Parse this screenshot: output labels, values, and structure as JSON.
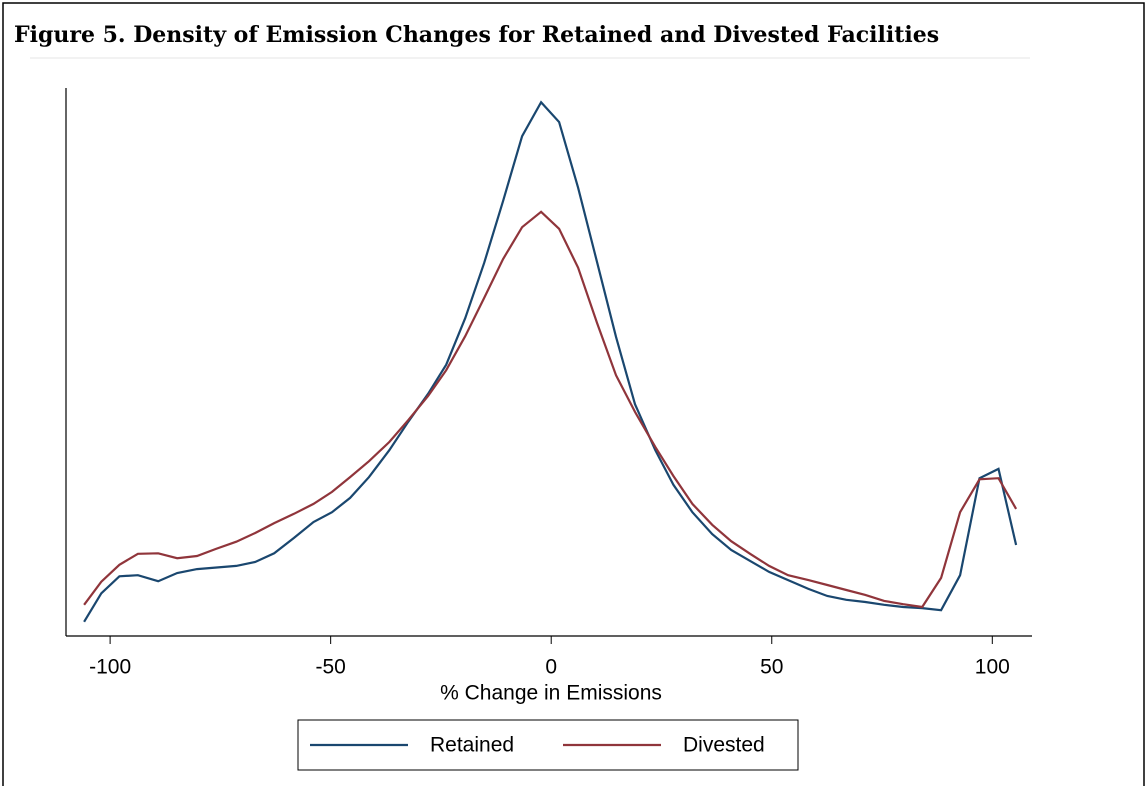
{
  "chart_data": {
    "type": "line",
    "title": "Figure 5. Density of Emission Changes for Retained and Divested Facilities",
    "x_label": "% Change in Emissions",
    "xlim": [
      -110,
      109
    ],
    "xticks": [
      -100,
      -50,
      0,
      50,
      100
    ],
    "ylim": [
      0,
      100
    ],
    "series": [
      {
        "name": "Retained",
        "color": "#1a476f",
        "x": [
          -105.9,
          -102.0,
          -97.9,
          -93.7,
          -89.1,
          -84.8,
          -80.3,
          -71.4,
          -67.1,
          -62.8,
          -58.3,
          -53.9,
          -49.7,
          -45.6,
          -41.3,
          -36.7,
          -32.4,
          -27.9,
          -23.8,
          -19.5,
          -15.2,
          -10.9,
          -6.6,
          -2.3,
          1.8,
          6.1,
          10.4,
          14.7,
          19.0,
          23.6,
          27.7,
          32.0,
          36.5,
          40.8,
          45.1,
          49.4,
          53.7,
          58.3,
          62.6,
          66.9,
          71.2,
          75.5,
          79.8,
          84.1,
          88.4,
          92.7,
          97.1,
          101.4,
          105.4
        ],
        "values": [
          2.6,
          7.8,
          10.9,
          11.1,
          10.0,
          11.5,
          12.2,
          12.8,
          13.5,
          15.1,
          17.9,
          20.8,
          22.6,
          25.2,
          29.0,
          33.9,
          39.1,
          44.2,
          49.5,
          58.0,
          68.1,
          79.4,
          91.2,
          97.4,
          93.8,
          81.8,
          68.2,
          54.6,
          42.3,
          33.9,
          27.6,
          22.6,
          18.6,
          15.7,
          13.7,
          11.7,
          10.2,
          8.6,
          7.3,
          6.6,
          6.2,
          5.7,
          5.3,
          5.1,
          4.7,
          11.1,
          28.8,
          30.5,
          16.6
        ]
      },
      {
        "name": "Divested",
        "color": "#90353b",
        "x": [
          -105.9,
          -102.0,
          -97.9,
          -93.7,
          -89.1,
          -84.8,
          -80.3,
          -76.0,
          -71.4,
          -67.1,
          -62.8,
          -58.3,
          -53.9,
          -49.7,
          -45.6,
          -41.3,
          -36.7,
          -32.4,
          -27.9,
          -23.8,
          -19.5,
          -15.2,
          -10.9,
          -6.6,
          -2.3,
          1.8,
          6.1,
          10.4,
          14.7,
          19.0,
          23.6,
          27.7,
          32.0,
          36.5,
          40.8,
          45.1,
          49.4,
          53.7,
          58.3,
          62.6,
          66.9,
          71.2,
          75.5,
          79.8,
          84.1,
          88.4,
          92.7,
          97.1,
          101.4,
          105.4
        ],
        "values": [
          5.7,
          9.9,
          13.0,
          15.0,
          15.1,
          14.2,
          14.6,
          15.9,
          17.2,
          18.8,
          20.6,
          22.3,
          24.1,
          26.3,
          29.0,
          31.9,
          35.4,
          39.4,
          43.8,
          48.5,
          54.7,
          61.7,
          68.8,
          74.6,
          77.4,
          74.3,
          67.2,
          57.1,
          47.6,
          40.9,
          34.5,
          29.2,
          24.1,
          20.3,
          17.3,
          15.0,
          12.8,
          11.1,
          10.2,
          9.3,
          8.4,
          7.5,
          6.4,
          5.8,
          5.3,
          10.6,
          22.6,
          28.6,
          28.8,
          23.2
        ]
      }
    ]
  }
}
